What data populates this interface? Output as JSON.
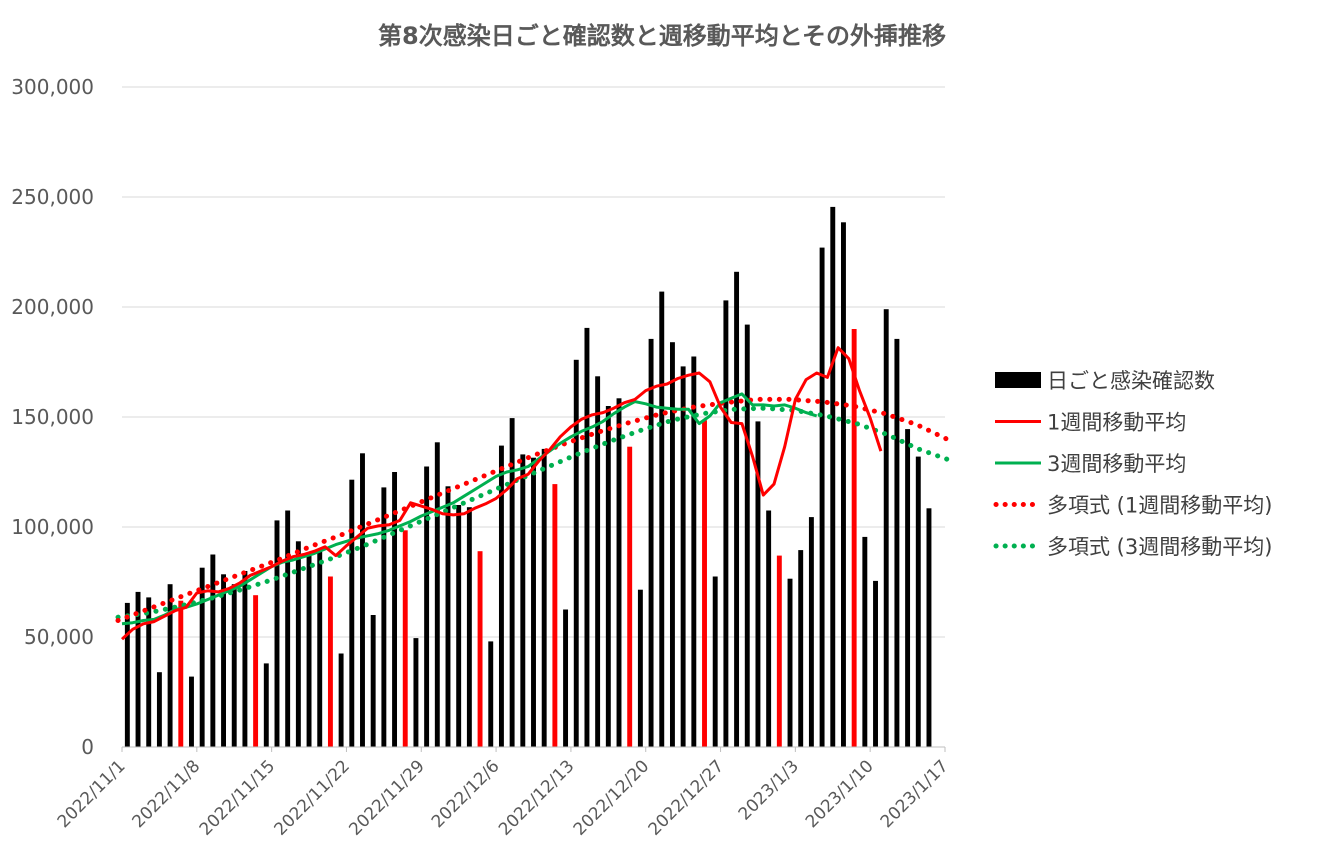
{
  "chart_data": {
    "type": "bar",
    "title": "第8次感染日ごと確認数と週移動平均とその外挿推移",
    "ylim": [
      0,
      300000
    ],
    "yticks": [
      "0",
      "50,000",
      "100,000",
      "150,000",
      "200,000",
      "250,000",
      "300,000"
    ],
    "ytick_values": [
      0,
      50000,
      100000,
      150000,
      200000,
      250000,
      300000
    ],
    "x_start": "2022/11/1",
    "x_end": "2023/1/17",
    "xtick_labels": [
      "2022/11/1",
      "2022/11/8",
      "2022/11/15",
      "2022/11/22",
      "2022/11/29",
      "2022/12/6",
      "2022/12/13",
      "2022/12/20",
      "2022/12/27",
      "2023/1/3",
      "2023/1/10",
      "2023/1/17"
    ],
    "grid": true,
    "legend_position": "right",
    "colors": {
      "bar": "#000000",
      "holiday_bar": "#ff0000",
      "ma1": "#ff0000",
      "ma3": "#00b050",
      "grid": "#d9d9d9",
      "title": "#595959"
    },
    "series": [
      {
        "name": "日ごと感染確認数",
        "type": "bar",
        "values": [
          65500,
          70500,
          68000,
          34000,
          74000,
          66500,
          32000,
          81500,
          87500,
          78500,
          74000,
          80000,
          69000,
          38000,
          103000,
          107500,
          93500,
          88000,
          90000,
          77500,
          42500,
          121500,
          133500,
          60000,
          118000,
          125000,
          98500,
          49500,
          127500,
          138500,
          118500,
          110000,
          109000,
          89000,
          48000,
          137000,
          149500,
          133000,
          131500,
          135500,
          119500,
          62500,
          176000,
          190500,
          168500,
          155000,
          158500,
          136500,
          71500,
          185500,
          207000,
          184000,
          173000,
          177500,
          148500,
          77500,
          203000,
          216000,
          192000,
          148000,
          107500,
          87000,
          76500,
          89500,
          104500,
          227000,
          245500,
          238500,
          190000,
          95500,
          75500,
          199000,
          185500,
          144500,
          132000,
          108500
        ],
        "highlight_indices": [
          5,
          12,
          19,
          26,
          33,
          40,
          47,
          54,
          61,
          68
        ]
      },
      {
        "name": "1週間移動平均",
        "type": "line",
        "values": [
          49000,
          53500,
          56000,
          57000,
          59500,
          62000,
          63500,
          70000,
          71000,
          70500,
          72000,
          74500,
          78000,
          80000,
          82000,
          84500,
          86500,
          87500,
          89000,
          91000,
          87000,
          91500,
          95500,
          99500,
          100500,
          101000,
          103000,
          111000,
          109500,
          108000,
          106000,
          105500,
          106000,
          108500,
          110500,
          113000,
          117000,
          122000,
          124000,
          130000,
          135000,
          141000,
          145500,
          149000,
          151000,
          152000,
          154000,
          156500,
          158000,
          162000,
          164000,
          165000,
          167500,
          169000,
          170000,
          166000,
          154500,
          147500,
          147000,
          132000,
          114500,
          119500,
          136500,
          158000,
          167000,
          170000,
          168000,
          181500,
          176500,
          162000,
          149500,
          134500
        ]
      },
      {
        "name": "3週間移動平均",
        "type": "line",
        "values": [
          56000,
          56500,
          57500,
          58000,
          60000,
          62500,
          63500,
          65000,
          67000,
          69000,
          71000,
          73000,
          76000,
          79000,
          82000,
          84000,
          85000,
          86500,
          88000,
          90000,
          92000,
          93500,
          95000,
          96000,
          97000,
          98500,
          100500,
          102500,
          105000,
          107000,
          109000,
          111000,
          114000,
          117000,
          120000,
          123000,
          125000,
          126000,
          127500,
          131000,
          134500,
          138000,
          141000,
          143500,
          145500,
          148000,
          151500,
          154500,
          157000,
          156000,
          154500,
          154000,
          153500,
          153500,
          147000,
          150500,
          156500,
          158500,
          160500,
          155500,
          155500,
          155000,
          155500,
          154000,
          152000,
          150500
        ]
      },
      {
        "name": "多項式 (1週間移動平均)",
        "type": "trendline",
        "values": [
          57500,
          63000,
          68500,
          74000,
          79500,
          85000,
          91000,
          96500,
          102500,
          108500,
          114500,
          120500,
          126500,
          132500,
          138000,
          143000,
          147500,
          151500,
          154500,
          156500,
          158000,
          158000,
          157000,
          155000,
          151500,
          146500,
          139500
        ]
      },
      {
        "name": "多項式 (3週間移動平均)",
        "type": "trendline",
        "values": [
          59000,
          61000,
          64000,
          67500,
          71500,
          76000,
          81000,
          86000,
          91500,
          97500,
          103500,
          109500,
          115500,
          121500,
          127500,
          133500,
          139000,
          144000,
          148500,
          151500,
          153500,
          154000,
          153000,
          150500,
          147000,
          142000,
          135500,
          130500
        ]
      }
    ]
  }
}
